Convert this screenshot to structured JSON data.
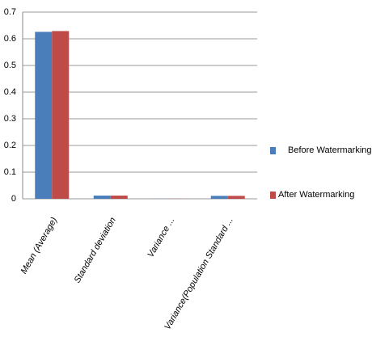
{
  "chart_data": {
    "type": "bar",
    "categories": [
      "Mean (Average)",
      "Standard deviation",
      "Variance ...",
      "Variance(Population Standard ..."
    ],
    "series": [
      {
        "name": "Before Watermarking",
        "color": "#4a7ebb",
        "values": [
          0.626,
          0.012,
          0.0005,
          0.011
        ]
      },
      {
        "name": "After Watermarking",
        "color": "#be4b48",
        "values": [
          0.629,
          0.012,
          0.0005,
          0.011
        ]
      }
    ],
    "ylim": [
      0,
      0.7
    ],
    "yticks": [
      0,
      0.1,
      0.2,
      0.3,
      0.4,
      0.5,
      0.6,
      0.7
    ],
    "grid": true,
    "legend": "right"
  }
}
